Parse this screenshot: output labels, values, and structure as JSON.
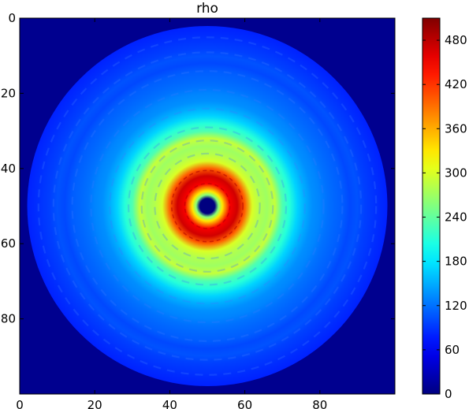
{
  "chart_data": {
    "type": "heatmap",
    "title": "rho",
    "xlabel": "",
    "ylabel": "",
    "x_range": [
      0,
      100
    ],
    "y_range": [
      0,
      100
    ],
    "y_inverted": true,
    "x_ticks": [
      "0",
      "20",
      "40",
      "60",
      "80"
    ],
    "y_ticks": [
      "0",
      "20",
      "40",
      "60",
      "80"
    ],
    "x_tick_values": [
      0,
      20,
      40,
      60,
      80
    ],
    "y_tick_values": [
      0,
      20,
      40,
      60,
      80
    ],
    "colorbar": {
      "colormap": "jet",
      "range": [
        0,
        510
      ],
      "ticks": [
        "0",
        "60",
        "120",
        "180",
        "240",
        "300",
        "360",
        "420",
        "480"
      ],
      "tick_values": [
        0,
        60,
        120,
        180,
        240,
        300,
        360,
        420,
        480
      ]
    },
    "disk_center": [
      50,
      50
    ],
    "disk_radius": 48,
    "background_value": 0,
    "radial_profile": {
      "r": [
        0,
        2,
        3,
        4,
        6,
        8,
        10,
        12,
        14,
        16,
        18,
        20,
        22,
        24,
        26,
        28,
        30,
        32,
        34,
        36,
        38,
        40,
        42,
        44,
        46,
        48
      ],
      "value": [
        0,
        0,
        260,
        330,
        450,
        470,
        400,
        300,
        280,
        270,
        290,
        230,
        210,
        170,
        150,
        135,
        130,
        120,
        115,
        110,
        100,
        105,
        95,
        90,
        85,
        80
      ]
    }
  }
}
